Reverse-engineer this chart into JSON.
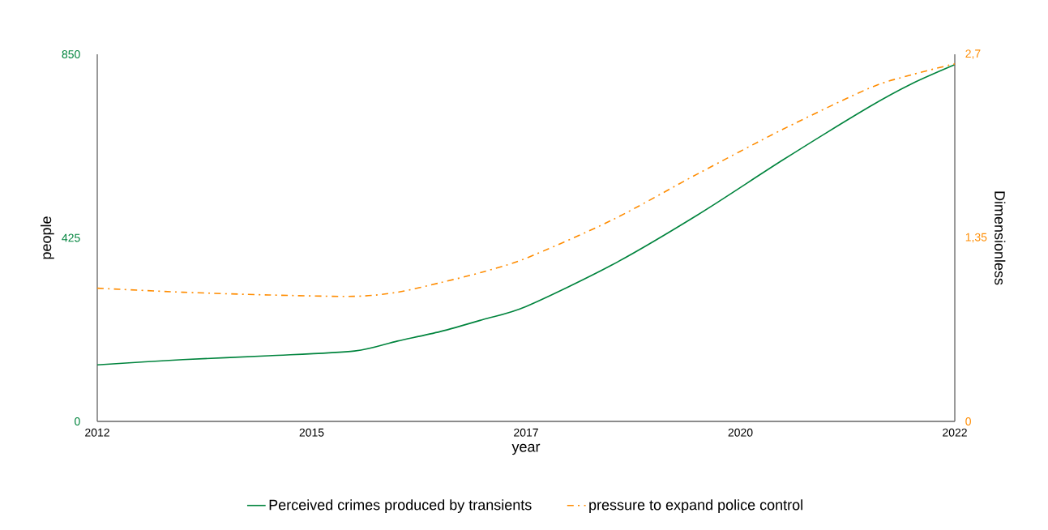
{
  "chart_data": {
    "type": "line",
    "xlabel": "year",
    "ylabel": "people",
    "y2label": "Dimensionless",
    "x": [
      2012,
      2013,
      2014,
      2015,
      2015.5,
      2016,
      2016.5,
      2017,
      2018,
      2019,
      2020,
      2021,
      2021.5,
      2022
    ],
    "series": [
      {
        "name": "Perceived crimes produced by transients",
        "color": "#00843d",
        "axis": "y",
        "line_style": "solid",
        "values": [
          131,
          143,
          152,
          163,
          186,
          208,
          236,
          266,
          362,
          478,
          606,
          728,
          782,
          826
        ]
      },
      {
        "name": "pressure to expand police control",
        "color": "#ff8c00",
        "axis": "y2",
        "line_style": "dashdot",
        "values": [
          0.98,
          0.95,
          0.93,
          0.92,
          0.95,
          1.02,
          1.1,
          1.2,
          1.48,
          1.82,
          2.15,
          2.45,
          2.55,
          2.63
        ]
      }
    ],
    "xlim": [
      2012,
      2022
    ],
    "xticks": [
      2012,
      {
        "value": 2014.5,
        "label": "2015"
      },
      2017,
      {
        "value": 2019.5,
        "label": "2020"
      },
      2022
    ],
    "ylim": [
      0,
      850
    ],
    "yticks": [
      0,
      425,
      850
    ],
    "y2lim": [
      0,
      2.7
    ],
    "y2ticks": [
      0,
      {
        "value": 1.35,
        "label": "1,35"
      },
      {
        "value": 2.7,
        "label": "2,7"
      }
    ],
    "grid": false,
    "legend": "bottom",
    "marker": "none"
  }
}
